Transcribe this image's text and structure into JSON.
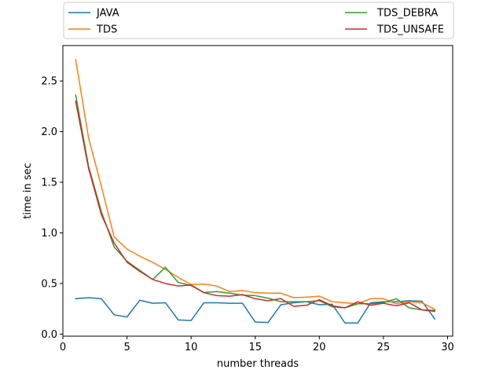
{
  "chart_data": {
    "type": "line",
    "title": "",
    "xlabel": "number threads",
    "ylabel": "time in sec",
    "xlim": [
      0,
      30.4
    ],
    "ylim": [
      -0.02,
      2.85
    ],
    "xticks": [
      0,
      5,
      10,
      15,
      20,
      25,
      30
    ],
    "yticks": [
      0.0,
      0.5,
      1.0,
      1.5,
      2.0,
      2.5
    ],
    "xtick_labels": [
      "0",
      "5",
      "10",
      "15",
      "20",
      "25",
      "30"
    ],
    "ytick_labels": [
      "0.0",
      "0.5",
      "1.0",
      "1.5",
      "2.0",
      "2.5"
    ],
    "legend": {
      "placement": "above-plot",
      "columns": 2
    },
    "x": [
      1,
      2,
      3,
      4,
      5,
      6,
      7,
      8,
      9,
      10,
      11,
      12,
      13,
      14,
      15,
      16,
      17,
      18,
      19,
      20,
      21,
      22,
      23,
      24,
      25,
      26,
      27,
      28,
      29
    ],
    "series": [
      {
        "name": "JAVA",
        "color": "#1f77b4",
        "values": [
          0.35,
          0.36,
          0.35,
          0.19,
          0.17,
          0.335,
          0.305,
          0.31,
          0.14,
          0.135,
          0.31,
          0.31,
          0.305,
          0.305,
          0.12,
          0.115,
          0.29,
          0.31,
          0.32,
          0.29,
          0.295,
          0.11,
          0.11,
          0.31,
          0.32,
          0.32,
          0.33,
          0.325,
          0.15
        ]
      },
      {
        "name": "TDS",
        "color": "#ff7f0e",
        "values": [
          2.71,
          1.94,
          1.46,
          0.96,
          0.84,
          0.77,
          0.71,
          0.64,
          0.56,
          0.49,
          0.495,
          0.475,
          0.42,
          0.43,
          0.41,
          0.405,
          0.405,
          0.36,
          0.365,
          0.375,
          0.32,
          0.31,
          0.3,
          0.35,
          0.35,
          0.3,
          0.32,
          0.31,
          0.245
        ]
      },
      {
        "name": "TDS_DEBRA",
        "color": "#2ca02c",
        "values": [
          2.36,
          1.66,
          1.21,
          0.86,
          0.72,
          0.63,
          0.54,
          0.66,
          0.51,
          0.48,
          0.41,
          0.42,
          0.405,
          0.385,
          0.38,
          0.355,
          0.32,
          0.32,
          0.32,
          0.33,
          0.27,
          0.26,
          0.3,
          0.3,
          0.31,
          0.35,
          0.26,
          0.24,
          0.235
        ]
      },
      {
        "name": "TDS_UNSAFE",
        "color": "#d62728",
        "values": [
          2.3,
          1.64,
          1.18,
          0.9,
          0.71,
          0.62,
          0.54,
          0.5,
          0.475,
          0.485,
          0.41,
          0.38,
          0.375,
          0.39,
          0.35,
          0.33,
          0.35,
          0.275,
          0.285,
          0.34,
          0.28,
          0.26,
          0.32,
          0.285,
          0.305,
          0.28,
          0.31,
          0.24,
          0.225
        ]
      }
    ]
  }
}
